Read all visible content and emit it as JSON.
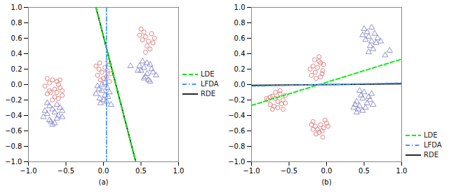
{
  "chart_data": [
    {
      "type": "scatter",
      "xlabel": "(a)",
      "xlim": [
        -1,
        1
      ],
      "ylim": [
        -1,
        1
      ],
      "xticks": [
        {
          "value": -1,
          "label": "−1.0"
        },
        {
          "value": -0.5,
          "label": "−0.5"
        },
        {
          "value": 0,
          "label": "0.0"
        },
        {
          "value": 0.5,
          "label": "0.5"
        },
        {
          "value": 1,
          "label": "1.0"
        }
      ],
      "yticks": [
        {
          "value": -1,
          "label": "−1.0"
        },
        {
          "value": -0.8,
          "label": "−0.8"
        },
        {
          "value": -0.6,
          "label": "−0.6"
        },
        {
          "value": -0.4,
          "label": "−0.4"
        },
        {
          "value": -0.2,
          "label": "−0.2"
        },
        {
          "value": 0,
          "label": "0.0"
        },
        {
          "value": 0.2,
          "label": "0.2"
        },
        {
          "value": 0.4,
          "label": "0.4"
        },
        {
          "value": 0.6,
          "label": "0.6"
        },
        {
          "value": 0.8,
          "label": "0.8"
        },
        {
          "value": 1,
          "label": "1.0"
        }
      ],
      "grid": false,
      "legend": "center right",
      "series": [
        {
          "type": "scatter",
          "marker": "circle",
          "color": "#e07878",
          "x": [
            -0.72,
            -0.68,
            -0.65,
            -0.62,
            -0.6,
            -0.58,
            -0.7,
            -0.75,
            -0.65,
            -0.6,
            -0.55,
            -0.68,
            -0.72,
            -0.62,
            -0.78,
            -0.55,
            -0.58,
            -0.75,
            0.02,
            0.05,
            0.08,
            -0.02,
            -0.05,
            0.0,
            -0.08,
            0.1,
            -0.04,
            0.06,
            -0.06,
            0.04,
            -0.1,
            0.08,
            0.52,
            0.56,
            0.6,
            0.64,
            0.58,
            0.54,
            0.62,
            0.66,
            0.5,
            0.68,
            0.56,
            0.48
          ],
          "values": [
            0.02,
            0.06,
            -0.06,
            -0.1,
            0.0,
            -0.04,
            -0.1,
            -0.12,
            -0.16,
            -0.18,
            -0.14,
            -0.2,
            -0.08,
            0.04,
            -0.02,
            -0.08,
            0.06,
            0.08,
            0.22,
            0.18,
            0.26,
            0.16,
            0.28,
            0.08,
            0.12,
            0.14,
            0.06,
            0.3,
            0.2,
            0.1,
            0.24,
            0.04,
            0.58,
            0.62,
            0.56,
            0.66,
            0.5,
            0.68,
            0.46,
            0.54,
            0.72,
            0.6,
            0.42,
            0.64
          ]
        },
        {
          "type": "scatter",
          "marker": "triangle",
          "color": "#8888cc",
          "x": [
            -0.72,
            -0.68,
            -0.65,
            -0.6,
            -0.62,
            -0.58,
            -0.7,
            -0.75,
            -0.65,
            -0.55,
            -0.68,
            -0.72,
            -0.78,
            -0.55,
            -0.62,
            -0.75,
            -0.8,
            -0.02,
            0.02,
            0.05,
            -0.05,
            0.0,
            -0.08,
            0.08,
            -0.04,
            0.06,
            -0.06,
            0.04,
            -0.1,
            0.1,
            -0.02,
            0.02,
            0.5,
            0.54,
            0.58,
            0.62,
            0.56,
            0.52,
            0.6,
            0.64,
            0.48,
            0.66,
            0.54,
            0.7,
            0.46,
            0.58,
            0.62,
            0.36
          ],
          "values": [
            -0.28,
            -0.32,
            -0.36,
            -0.4,
            -0.44,
            -0.3,
            -0.48,
            -0.38,
            -0.5,
            -0.42,
            -0.52,
            -0.46,
            -0.34,
            -0.34,
            -0.26,
            -0.24,
            -0.42,
            -0.08,
            -0.14,
            -0.04,
            -0.18,
            -0.2,
            -0.02,
            -0.1,
            -0.24,
            -0.16,
            -0.06,
            -0.22,
            -0.12,
            -0.26,
            0.0,
            0.02,
            0.18,
            0.22,
            0.14,
            0.26,
            0.1,
            0.3,
            0.06,
            0.2,
            0.24,
            0.16,
            0.08,
            0.12,
            0.18,
            0.28,
            0.04,
            0.24
          ]
        },
        {
          "name": "LDE",
          "type": "line",
          "line_style": "dashed",
          "color": "#00ee00",
          "x": [
            -0.1,
            0.43
          ],
          "values": [
            1.0,
            -1.0
          ]
        },
        {
          "name": "LFDA",
          "type": "line",
          "line_style": "dashdot",
          "color": "#4499ff",
          "x": [
            0.04,
            0.04
          ],
          "values": [
            1.0,
            -1.0
          ]
        },
        {
          "name": "RDE",
          "type": "line",
          "line_style": "solid",
          "color": "#111111",
          "x": [
            -0.1,
            0.43
          ],
          "values": [
            1.0,
            -1.0
          ]
        }
      ]
    },
    {
      "type": "scatter",
      "xlabel": "(b)",
      "xlim": [
        -1,
        1
      ],
      "ylim": [
        -1,
        1
      ],
      "xticks": [
        {
          "value": -1,
          "label": "−1.0"
        },
        {
          "value": -0.5,
          "label": "−0.5"
        },
        {
          "value": 0,
          "label": "0.0"
        },
        {
          "value": 0.5,
          "label": "0.5"
        },
        {
          "value": 1,
          "label": "1.0"
        }
      ],
      "yticks": [
        {
          "value": -1,
          "label": "−1.0"
        },
        {
          "value": -0.8,
          "label": "−0.8"
        },
        {
          "value": -0.6,
          "label": "−0.6"
        },
        {
          "value": -0.4,
          "label": "−0.4"
        },
        {
          "value": -0.2,
          "label": "−0.2"
        },
        {
          "value": 0,
          "label": "0.0"
        },
        {
          "value": 0.2,
          "label": "0.2"
        },
        {
          "value": 0.4,
          "label": "0.4"
        },
        {
          "value": 0.6,
          "label": "0.6"
        },
        {
          "value": 0.8,
          "label": "0.8"
        },
        {
          "value": 1,
          "label": "1.0"
        }
      ],
      "grid": false,
      "legend": "lower right",
      "series": [
        {
          "type": "scatter",
          "marker": "circle",
          "color": "#e07878",
          "x": [
            -0.72,
            -0.68,
            -0.65,
            -0.6,
            -0.62,
            -0.58,
            -0.7,
            -0.75,
            -0.65,
            -0.55,
            -0.68,
            -0.72,
            -0.78,
            -0.55,
            -0.62,
            -0.75,
            -0.8,
            -0.58,
            -0.12,
            -0.08,
            -0.05,
            -0.15,
            -0.18,
            -0.1,
            -0.2,
            -0.06,
            -0.22,
            -0.14,
            -0.16,
            -0.04,
            -0.1,
            -0.08,
            -0.08,
            -0.04,
            0.0,
            -0.12,
            -0.15,
            -0.06,
            -0.18,
            0.02,
            -0.1,
            -0.2,
            -0.02,
            -0.14,
            -0.05,
            -0.18
          ],
          "values": [
            -0.15,
            -0.18,
            -0.22,
            -0.25,
            -0.12,
            -0.2,
            -0.28,
            -0.16,
            -0.3,
            -0.24,
            -0.1,
            -0.32,
            -0.2,
            -0.14,
            -0.08,
            -0.26,
            -0.18,
            -0.32,
            0.22,
            0.28,
            0.18,
            0.16,
            0.24,
            0.3,
            0.12,
            0.14,
            0.2,
            0.08,
            0.32,
            0.26,
            0.36,
            0.1,
            -0.52,
            -0.56,
            -0.5,
            -0.58,
            -0.54,
            -0.6,
            -0.48,
            -0.54,
            -0.62,
            -0.52,
            -0.46,
            -0.64,
            -0.68,
            -0.58
          ]
        },
        {
          "type": "scatter",
          "marker": "triangle",
          "color": "#8888cc",
          "x": [
            0.52,
            0.56,
            0.6,
            0.64,
            0.58,
            0.54,
            0.62,
            0.66,
            0.5,
            0.68,
            0.56,
            0.48,
            0.72,
            0.6,
            0.78,
            0.84,
            0.4,
            0.44,
            0.48,
            0.52,
            0.46,
            0.42,
            0.5,
            0.54,
            0.38,
            0.56,
            0.44,
            0.58,
            0.36,
            0.6,
            0.48,
            0.62,
            0.4
          ],
          "values": [
            0.58,
            0.62,
            0.56,
            0.66,
            0.5,
            0.68,
            0.46,
            0.54,
            0.72,
            0.6,
            0.42,
            0.64,
            0.56,
            0.74,
            0.38,
            0.44,
            -0.22,
            -0.28,
            -0.18,
            -0.3,
            -0.14,
            -0.32,
            -0.1,
            -0.24,
            -0.26,
            -0.16,
            -0.08,
            -0.2,
            -0.3,
            -0.12,
            -0.34,
            -0.26,
            -0.36
          ]
        },
        {
          "name": "LDE",
          "type": "line",
          "line_style": "dashed",
          "color": "#00ee00",
          "x": [
            -1.0,
            1.0
          ],
          "values": [
            -0.27,
            0.33
          ]
        },
        {
          "name": "LFDA",
          "type": "line",
          "line_style": "dashdot",
          "color": "#4499ff",
          "x": [
            -1.0,
            1.0
          ],
          "values": [
            -0.02,
            0.02
          ]
        },
        {
          "name": "RDE",
          "type": "line",
          "line_style": "solid",
          "color": "#111111",
          "x": [
            -1.0,
            1.0
          ],
          "values": [
            -0.01,
            0.01
          ]
        }
      ]
    }
  ]
}
